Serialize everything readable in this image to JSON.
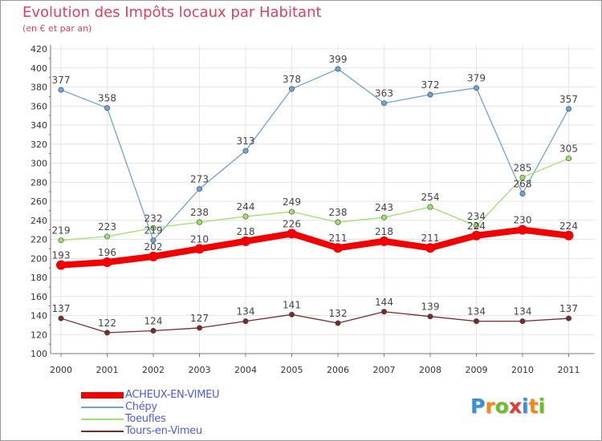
{
  "title": "Evolution des Impôts locaux par Habitant",
  "subtitle": "(en € et par an)",
  "logo": {
    "text": "Proxiti",
    "letters": [
      "P",
      "r",
      "o",
      "x",
      "i",
      "t",
      "i"
    ],
    "colors": [
      "#3a8fd6",
      "#f08a1c",
      "#6cbf2c",
      "#e23a3a",
      "#3a8fd6",
      "#f08a1c",
      "#6cbf2c"
    ]
  },
  "chart_data": {
    "type": "line",
    "title": "Evolution des Impôts locaux par Habitant",
    "subtitle": "(en € et par an)",
    "categories": [
      "2000",
      "2001",
      "2002",
      "2003",
      "2004",
      "2005",
      "2006",
      "2007",
      "2008",
      "2009",
      "2010",
      "2011"
    ],
    "ylim": [
      100,
      420
    ],
    "yticks": [
      100,
      120,
      140,
      160,
      180,
      200,
      220,
      240,
      260,
      280,
      300,
      320,
      340,
      360,
      380,
      400,
      420
    ],
    "grid": true,
    "legend_position": "bottom-left",
    "series": [
      {
        "name": "ACHEUX-EN-VIMEU",
        "values": [
          193,
          196,
          202,
          210,
          218,
          226,
          211,
          218,
          211,
          224,
          230,
          224
        ],
        "color": "#f20000",
        "bold": true
      },
      {
        "name": "Chépy",
        "values": [
          377,
          358,
          219,
          273,
          313,
          378,
          399,
          363,
          372,
          379,
          268,
          357
        ],
        "color": "#6fa3d5",
        "bold": false
      },
      {
        "name": "Toeufles",
        "values": [
          219,
          223,
          232,
          238,
          244,
          249,
          238,
          243,
          254,
          234,
          285,
          305
        ],
        "color": "#9ee070",
        "bold": false
      },
      {
        "name": "Tours-en-Vimeu",
        "values": [
          137,
          122,
          124,
          127,
          134,
          141,
          132,
          144,
          139,
          134,
          134,
          137
        ],
        "color": "#7a2a2a",
        "bold": false
      }
    ]
  }
}
